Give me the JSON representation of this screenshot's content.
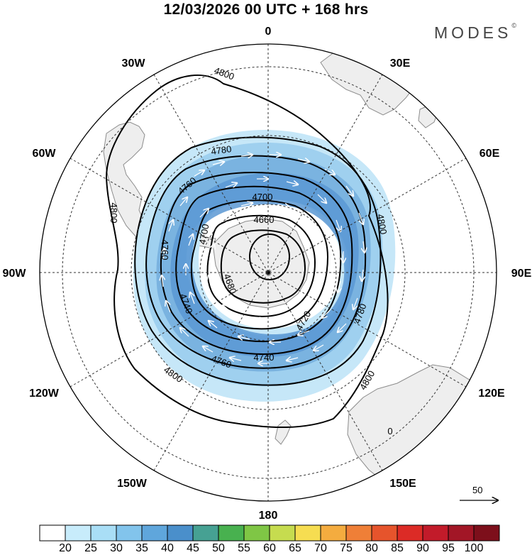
{
  "title": "12/03/2026  00 UTC  + 168 hrs",
  "brand": "MODES",
  "brand_mark": "©",
  "longitude_labels": {
    "north": "0",
    "e30": "30E",
    "e60": "60E",
    "e90": "90E",
    "e120": "120E",
    "e150": "150E",
    "south": "180",
    "w150": "150W",
    "w120": "120W",
    "w90": "90W",
    "w60": "60W",
    "w30": "30W"
  },
  "contour_labels": {
    "c4800_top": "4800",
    "c4780_top": "4780",
    "c4760_top": "4760",
    "c4700_top": "4700",
    "c4660": "4660",
    "c4800_left": "4800",
    "c4760_left": "4760",
    "c4700_left": "4700",
    "c4680": "4680",
    "c4740_left": "4740",
    "c4800_right": "4800",
    "c4780_right": "4780",
    "c4720": "4720",
    "c4740_bottom": "4740",
    "c4760_bottom": "4760",
    "c4800_bottom": "4800",
    "c4800_se": "4800",
    "c0_se": "0"
  },
  "reference_vector": "50",
  "colors": {
    "land": "#eeeeee",
    "coast": "#8c8c8c",
    "contour": "#000000",
    "wind_light": "#c6e7f8",
    "wind_mid": "#9fd0ef",
    "wind_strong": "#7ab3e0",
    "wind_max": "#5b98d3"
  },
  "legend": {
    "colors": [
      "#ffffff",
      "#c8ecfb",
      "#a9def6",
      "#82c4ec",
      "#5fa6dc",
      "#4a8fcb",
      "#46a193",
      "#48b14f",
      "#7fc645",
      "#c6dc4f",
      "#f6dd51",
      "#f4ac3f",
      "#ef7f37",
      "#e6542c",
      "#dc2b26",
      "#c21b2a",
      "#a21626",
      "#7d0f1b"
    ],
    "ticks": [
      "20",
      "25",
      "30",
      "35",
      "40",
      "45",
      "50",
      "55",
      "60",
      "65",
      "70",
      "75",
      "80",
      "85",
      "90",
      "95",
      "100"
    ]
  }
}
